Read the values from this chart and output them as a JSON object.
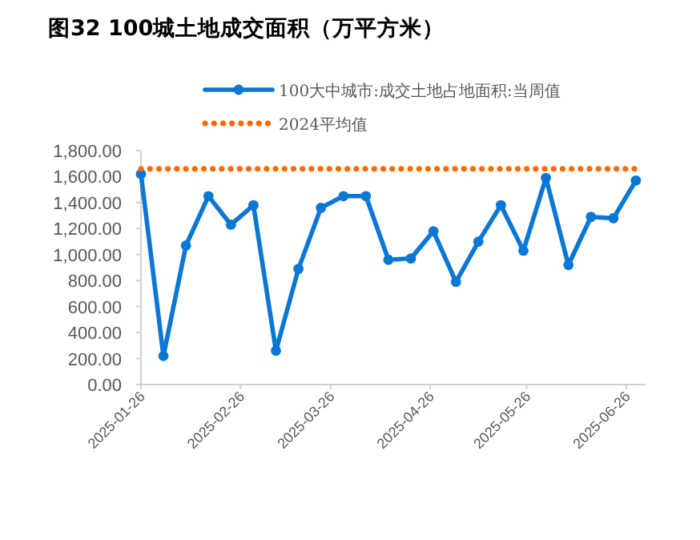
{
  "chart_data": {
    "type": "line",
    "title": "图32 100城土地成交面积（万平方米）",
    "x": [
      "2025-01-26",
      "2025-02-02",
      "2025-02-09",
      "2025-02-16",
      "2025-02-23",
      "2025-03-02",
      "2025-03-09",
      "2025-03-16",
      "2025-03-23",
      "2025-03-30",
      "2025-04-06",
      "2025-04-13",
      "2025-04-20",
      "2025-04-27",
      "2025-05-04",
      "2025-05-11",
      "2025-05-18",
      "2025-05-25",
      "2025-06-01",
      "2025-06-08",
      "2025-06-15",
      "2025-06-22",
      "2025-06-29"
    ],
    "series": [
      {
        "name": "100大中城市:成交土地占地面积:当周值",
        "color": "#0a77d5",
        "marker": "circle",
        "line_style": "solid",
        "values": [
          1620,
          220,
          1070,
          1450,
          1230,
          1380,
          260,
          890,
          1360,
          1450,
          1450,
          960,
          970,
          1180,
          790,
          1100,
          1380,
          1030,
          1590,
          920,
          1290,
          1280,
          1570
        ]
      },
      {
        "name": "2024平均值",
        "color": "#ff6a00",
        "marker": "none",
        "line_style": "dotted",
        "values": [
          1660,
          1660,
          1660,
          1660,
          1660,
          1660,
          1660,
          1660,
          1660,
          1660,
          1660,
          1660,
          1660,
          1660,
          1660,
          1660,
          1660,
          1660,
          1660,
          1660,
          1660,
          1660,
          1660
        ]
      }
    ],
    "xlim": [
      "2025-01-26",
      "2025-07-02"
    ],
    "xticks": [
      "2025-01-26",
      "2025-02-26",
      "2025-03-26",
      "2025-04-26",
      "2025-05-26",
      "2025-06-26"
    ],
    "ylim": [
      0,
      1800
    ],
    "yticks": [
      {
        "value": 0,
        "label": "0.00"
      },
      {
        "value": 200,
        "label": "200.00"
      },
      {
        "value": 400,
        "label": "400.00"
      },
      {
        "value": 600,
        "label": "600.00"
      },
      {
        "value": 800,
        "label": "800.00"
      },
      {
        "value": 1000,
        "label": "1,000.00"
      },
      {
        "value": 1200,
        "label": "1,200.00"
      },
      {
        "value": 1400,
        "label": "1,400.00"
      },
      {
        "value": 1600,
        "label": "1,600.00"
      },
      {
        "value": 1800,
        "label": "1,800.00"
      }
    ],
    "grid": false,
    "legend": "top"
  }
}
